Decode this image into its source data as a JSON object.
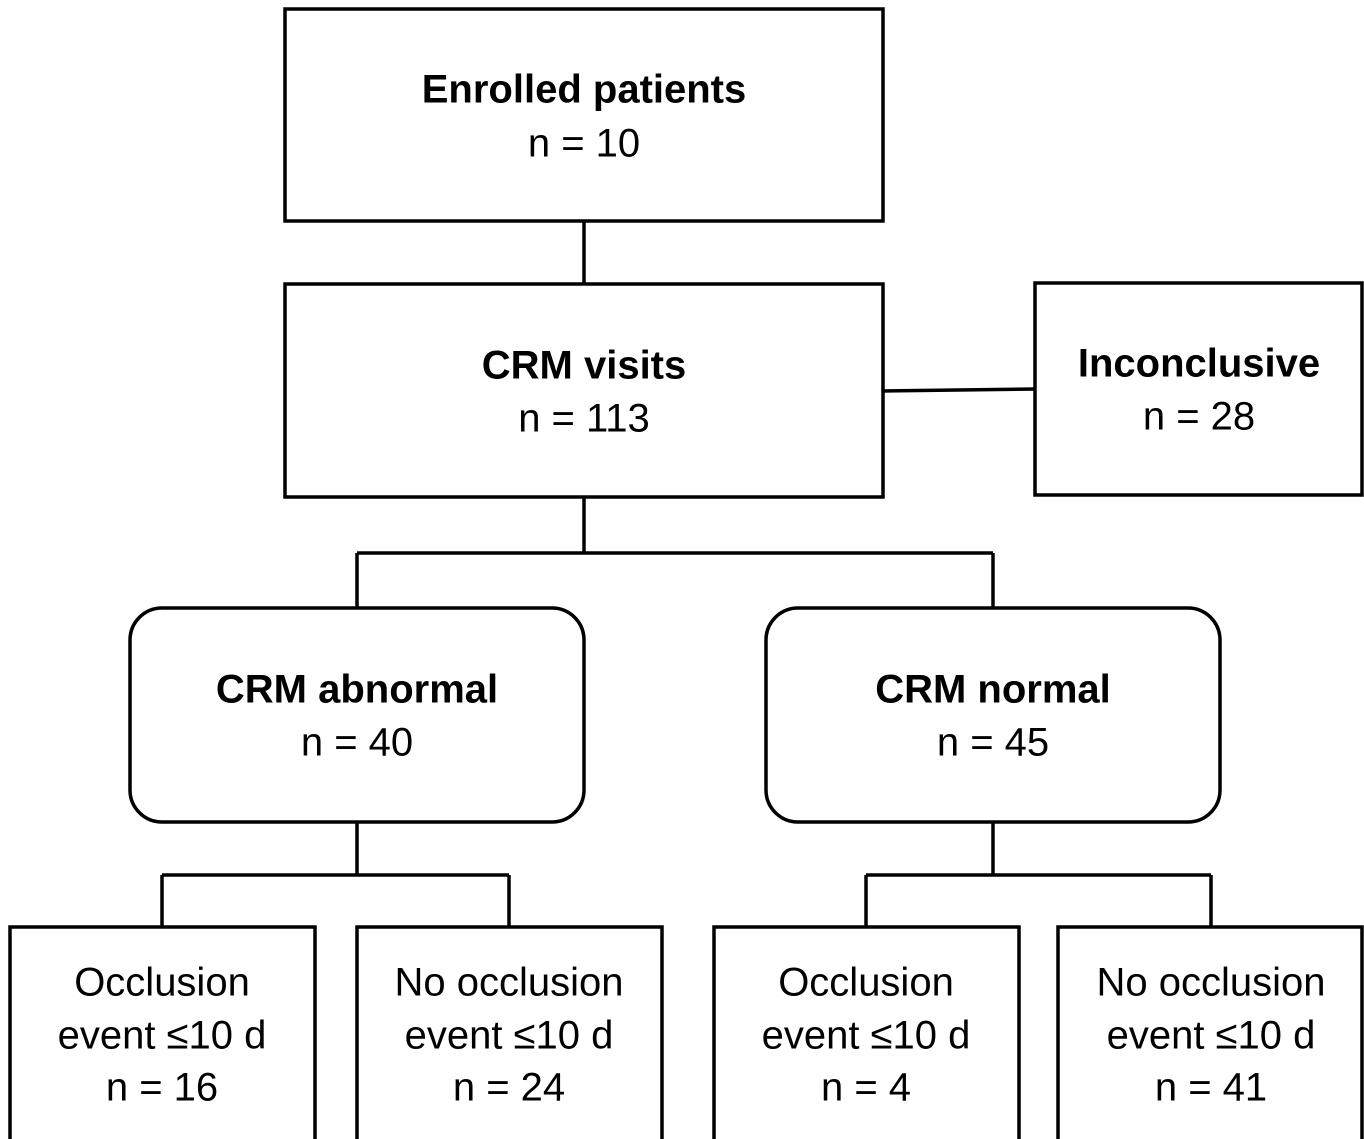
{
  "nodes": [
    {
      "lines": [
        "Enrolled patients",
        "n = 10"
      ]
    },
    {
      "lines": [
        "CRM visits",
        "n = 113"
      ]
    },
    {
      "lines": [
        "Inconclusive",
        "n = 28"
      ]
    },
    {
      "lines": [
        "CRM abnormal",
        "n = 40"
      ]
    },
    {
      "lines": [
        "CRM normal",
        "n = 45"
      ]
    },
    {
      "lines": [
        "Occlusion",
        "event ≤10 d",
        "n = 16"
      ]
    },
    {
      "lines": [
        "No occlusion",
        "event ≤10 d",
        "n = 24"
      ]
    },
    {
      "lines": [
        "Occlusion",
        "event ≤10 d",
        "n = 4"
      ]
    },
    {
      "lines": [
        "No occlusion",
        "event ≤10 d",
        "n = 41"
      ]
    }
  ]
}
